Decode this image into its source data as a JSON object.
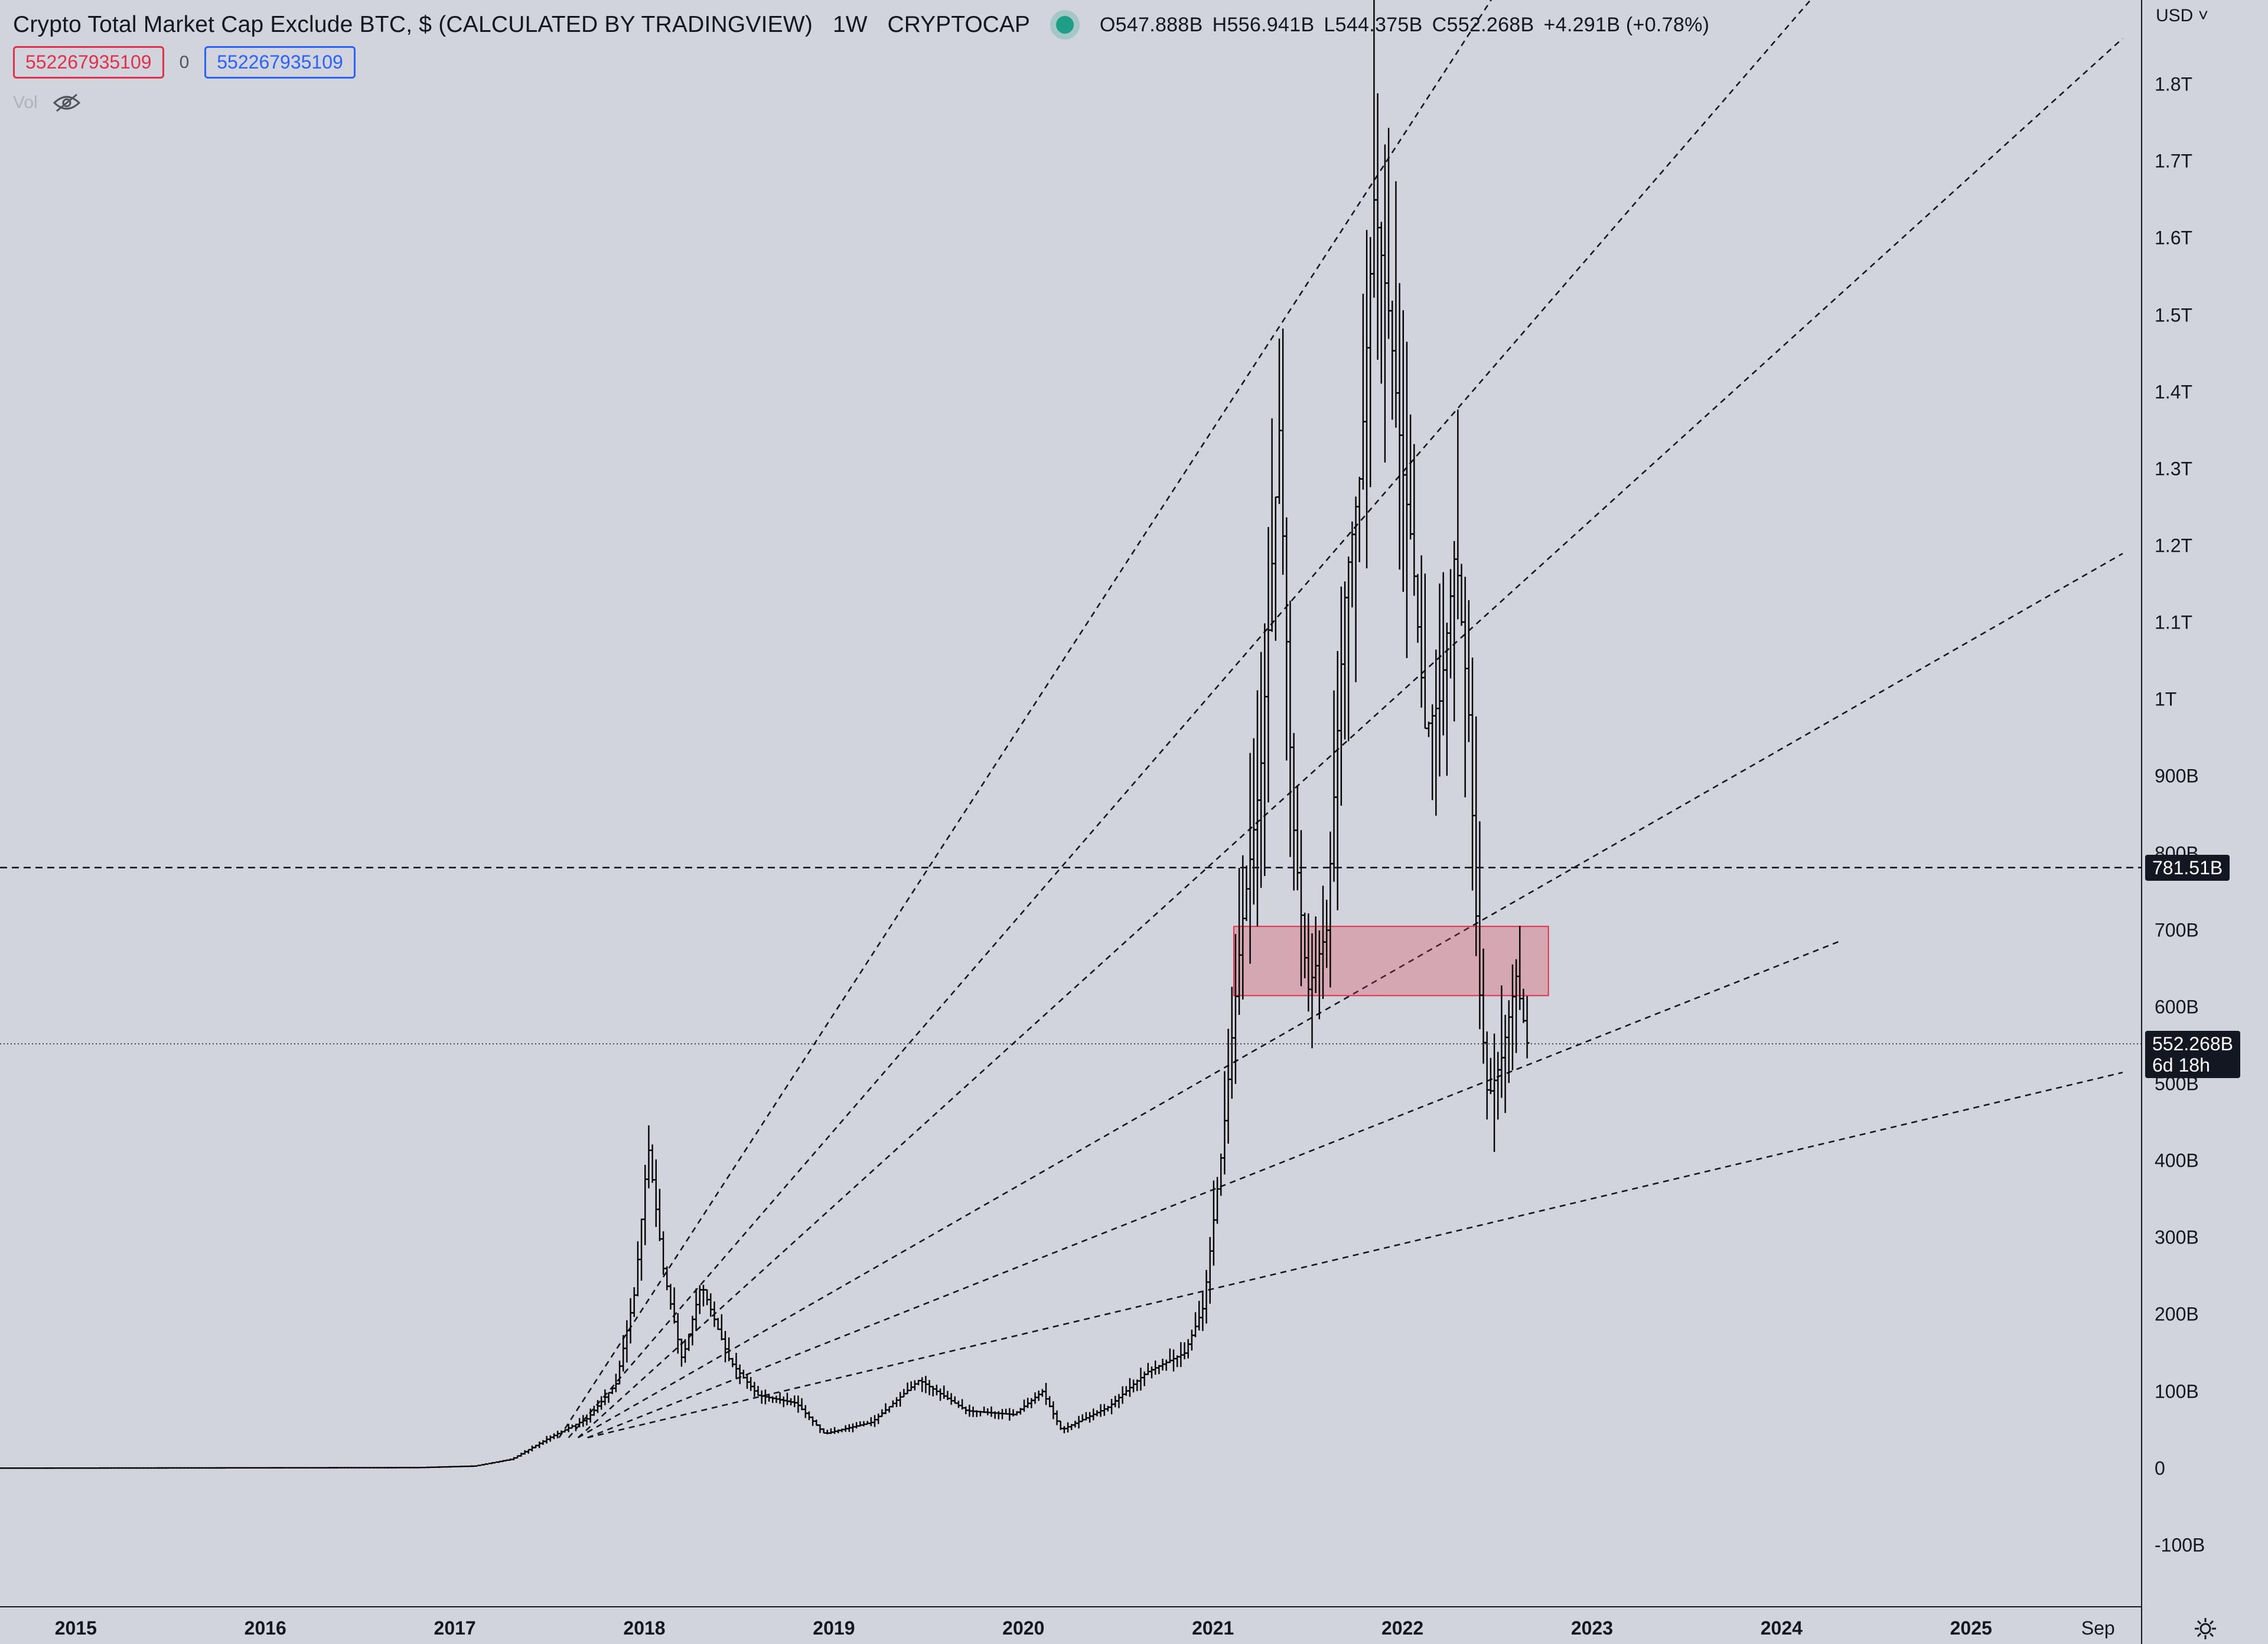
{
  "header": {
    "title": "Crypto Total Market Cap Exclude BTC, $ (CALCULATED BY TRADINGVIEW)",
    "interval": "1W",
    "exchange": "CRYPTOCAP",
    "status_color": "#1e9e86",
    "ohlc": {
      "open_label": "O",
      "open": "547.888B",
      "high_label": "H",
      "high": "556.941B",
      "low_label": "L",
      "low": "544.375B",
      "close_label": "C",
      "close": "552.268B",
      "change": "+4.291B (+0.78%)"
    }
  },
  "indicator": {
    "left_value": "552267935109",
    "middle_value": "0",
    "right_value": "552267935109"
  },
  "volume": {
    "label": "Vol",
    "icon": "eye-off-icon"
  },
  "currency_selector": "USD",
  "y_axis": {
    "labels": [
      "1.8T",
      "1.7T",
      "1.6T",
      "1.5T",
      "1.4T",
      "1.3T",
      "1.2T",
      "1.1T",
      "1T",
      "900B",
      "800B",
      "700B",
      "600B",
      "500B",
      "400B",
      "300B",
      "200B",
      "100B",
      "0",
      "-100B"
    ],
    "values": [
      1800,
      1700,
      1600,
      1500,
      1400,
      1300,
      1200,
      1100,
      1000,
      900,
      800,
      700,
      600,
      500,
      400,
      300,
      200,
      100,
      0,
      -100
    ]
  },
  "x_axis": {
    "labels": [
      "2015",
      "2016",
      "2017",
      "2018",
      "2019",
      "2020",
      "2021",
      "2022",
      "2023",
      "2024",
      "2025",
      "Sep"
    ],
    "values": [
      2015,
      2016,
      2017,
      2018,
      2019,
      2020,
      2021,
      2022,
      2023,
      2024,
      2025,
      2025.67
    ]
  },
  "price_tags": {
    "level": {
      "value": 781.51,
      "label": "781.51B"
    },
    "current": {
      "value": 552.268,
      "label": "552.268B",
      "countdown": "6d 18h"
    }
  },
  "chart_data": {
    "type": "bar",
    "style": "ohlc",
    "x_unit": "year",
    "y_unit": "billion USD",
    "x_range": [
      2014.6,
      2025.9
    ],
    "ylim": [
      -180,
      1910
    ],
    "grid": false,
    "bar_color": "#000000",
    "key_points": [
      {
        "t": 2014.6,
        "v": 0.3
      },
      {
        "t": 2016.8,
        "v": 1
      },
      {
        "t": 2017.1,
        "v": 3
      },
      {
        "t": 2017.3,
        "v": 12
      },
      {
        "t": 2017.5,
        "v": 40
      },
      {
        "t": 2017.7,
        "v": 65
      },
      {
        "t": 2017.85,
        "v": 110
      },
      {
        "t": 2017.95,
        "v": 230
      },
      {
        "t": 2018.02,
        "v": 420
      },
      {
        "t": 2018.1,
        "v": 260
      },
      {
        "t": 2018.2,
        "v": 140
      },
      {
        "t": 2018.3,
        "v": 240
      },
      {
        "t": 2018.45,
        "v": 140
      },
      {
        "t": 2018.6,
        "v": 95
      },
      {
        "t": 2018.8,
        "v": 85
      },
      {
        "t": 2018.95,
        "v": 45
      },
      {
        "t": 2019.2,
        "v": 60
      },
      {
        "t": 2019.45,
        "v": 115
      },
      {
        "t": 2019.7,
        "v": 75
      },
      {
        "t": 2019.95,
        "v": 70
      },
      {
        "t": 2020.1,
        "v": 100
      },
      {
        "t": 2020.2,
        "v": 50
      },
      {
        "t": 2020.45,
        "v": 80
      },
      {
        "t": 2020.65,
        "v": 125
      },
      {
        "t": 2020.85,
        "v": 150
      },
      {
        "t": 2020.95,
        "v": 210
      },
      {
        "t": 2021.05,
        "v": 420
      },
      {
        "t": 2021.15,
        "v": 700
      },
      {
        "t": 2021.25,
        "v": 900
      },
      {
        "t": 2021.35,
        "v": 1350
      },
      {
        "t": 2021.42,
        "v": 850
      },
      {
        "t": 2021.5,
        "v": 620
      },
      {
        "t": 2021.6,
        "v": 700
      },
      {
        "t": 2021.7,
        "v": 1150
      },
      {
        "t": 2021.78,
        "v": 1300
      },
      {
        "t": 2021.85,
        "v": 1650
      },
      {
        "t": 2021.93,
        "v": 1500
      },
      {
        "t": 2022.0,
        "v": 1300
      },
      {
        "t": 2022.05,
        "v": 1200
      },
      {
        "t": 2022.12,
        "v": 960
      },
      {
        "t": 2022.2,
        "v": 1000
      },
      {
        "t": 2022.28,
        "v": 1200
      },
      {
        "t": 2022.35,
        "v": 980
      },
      {
        "t": 2022.4,
        "v": 640
      },
      {
        "t": 2022.45,
        "v": 480
      },
      {
        "t": 2022.52,
        "v": 530
      },
      {
        "t": 2022.6,
        "v": 640
      },
      {
        "t": 2022.66,
        "v": 550
      }
    ],
    "trendlines": [
      {
        "from": {
          "t": 2017.55,
          "v": 40
        },
        "to": {
          "t": 2025.15,
          "v": 2930
        }
      },
      {
        "from": {
          "t": 2017.6,
          "v": 40
        },
        "to": {
          "t": 2025.8,
          "v": 2380
        }
      },
      {
        "from": {
          "t": 2017.65,
          "v": 40
        },
        "to": {
          "t": 2025.8,
          "v": 1860
        }
      },
      {
        "from": {
          "t": 2017.65,
          "v": 40
        },
        "to": {
          "t": 2025.8,
          "v": 1190
        }
      },
      {
        "from": {
          "t": 2017.7,
          "v": 40
        },
        "to": {
          "t": 2024.3,
          "v": 685
        }
      },
      {
        "from": {
          "t": 2017.7,
          "v": 40
        },
        "to": {
          "t": 2025.8,
          "v": 515
        }
      }
    ],
    "horizontal_line": 781.51,
    "current_price_line": 552.268,
    "zone": {
      "t1": 2021.11,
      "t2": 2022.77,
      "v1": 615,
      "v2": 705,
      "color": "#e0314b"
    }
  }
}
